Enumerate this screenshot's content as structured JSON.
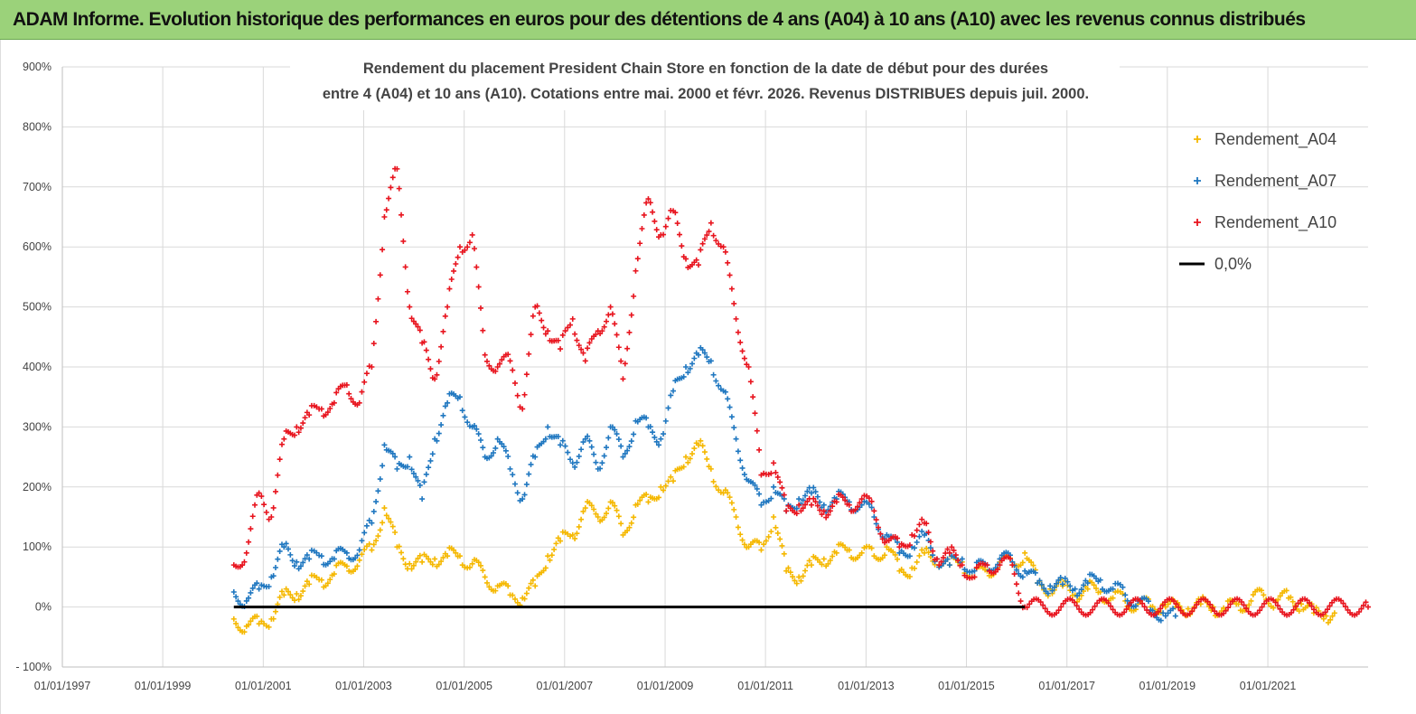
{
  "banner": {
    "title": "ADAM Informe. Evolution historique des performances en euros pour des détentions de 4 ans (A04) à 10 ans (A10) avec les revenus connus distribués",
    "background": "#9bd27a"
  },
  "chart_data": {
    "type": "scatter",
    "title_line1": "Rendement du placement President Chain Store  en fonction de la date de début pour des durées",
    "title_line2": "entre 4 (A04) et 10 ans (A10).  Cotations entre mai. 2000 et févr. 2026. Revenus DISTRIBUES depuis juil. 2000.",
    "xlabel": "",
    "ylabel": "",
    "x_axis": "date",
    "xlim": [
      "1997-01-01",
      "2022-12-31"
    ],
    "xticks": [
      "01/01/1997",
      "01/01/1999",
      "01/01/2001",
      "01/01/2003",
      "01/01/2005",
      "01/01/2007",
      "01/01/2009",
      "01/01/2011",
      "01/01/2013",
      "01/01/2015",
      "01/01/2017",
      "01/01/2019",
      "01/01/2021"
    ],
    "ylim": [
      -100,
      900
    ],
    "yticks": [
      -100,
      0,
      100,
      200,
      300,
      400,
      500,
      600,
      700,
      800,
      900
    ],
    "ytick_labels": [
      "- 100%",
      "0%",
      "100%",
      "200%",
      "300%",
      "400%",
      "500%",
      "600%",
      "700%",
      "800%",
      "900%"
    ],
    "grid": true,
    "legend_position": "top-right",
    "series": [
      {
        "name": "Rendement_A04",
        "color": "#f5b800",
        "marker": "+",
        "points": [
          [
            "2000-06-01",
            -20
          ],
          [
            "2000-09-01",
            -32
          ],
          [
            "2000-12-01",
            -28
          ],
          [
            "2001-03-01",
            -20
          ],
          [
            "2001-06-01",
            20
          ],
          [
            "2001-09-01",
            22
          ],
          [
            "2001-12-01",
            38
          ],
          [
            "2002-03-01",
            45
          ],
          [
            "2002-06-01",
            55
          ],
          [
            "2002-09-01",
            68
          ],
          [
            "2002-12-01",
            78
          ],
          [
            "2003-03-01",
            95
          ],
          [
            "2003-06-01",
            165
          ],
          [
            "2003-09-01",
            100
          ],
          [
            "2003-12-01",
            72
          ],
          [
            "2004-03-01",
            75
          ],
          [
            "2004-06-01",
            80
          ],
          [
            "2004-09-01",
            85
          ],
          [
            "2004-12-01",
            85
          ],
          [
            "2005-03-01",
            72
          ],
          [
            "2005-06-01",
            50
          ],
          [
            "2005-09-01",
            35
          ],
          [
            "2005-12-01",
            20
          ],
          [
            "2006-03-01",
            15
          ],
          [
            "2006-06-01",
            35
          ],
          [
            "2006-09-01",
            85
          ],
          [
            "2006-12-01",
            110
          ],
          [
            "2007-03-01",
            120
          ],
          [
            "2007-06-01",
            165
          ],
          [
            "2007-09-01",
            150
          ],
          [
            "2007-12-01",
            175
          ],
          [
            "2008-03-01",
            120
          ],
          [
            "2008-06-01",
            170
          ],
          [
            "2008-09-01",
            175
          ],
          [
            "2008-12-01",
            200
          ],
          [
            "2009-03-01",
            210
          ],
          [
            "2009-06-01",
            250
          ],
          [
            "2009-09-01",
            270
          ],
          [
            "2009-12-01",
            230
          ],
          [
            "2010-03-01",
            190
          ],
          [
            "2010-06-01",
            150
          ],
          [
            "2010-09-01",
            100
          ],
          [
            "2010-12-01",
            95
          ],
          [
            "2011-03-01",
            150
          ],
          [
            "2011-06-01",
            60
          ],
          [
            "2011-09-01",
            50
          ],
          [
            "2011-12-01",
            70
          ],
          [
            "2012-03-01",
            80
          ],
          [
            "2012-06-01",
            90
          ],
          [
            "2012-09-01",
            95
          ],
          [
            "2012-12-01",
            90
          ],
          [
            "2013-03-01",
            85
          ],
          [
            "2013-06-01",
            100
          ],
          [
            "2013-09-01",
            60
          ],
          [
            "2013-12-01",
            65
          ],
          [
            "2014-03-01",
            90
          ],
          [
            "2014-06-01",
            80
          ],
          [
            "2014-09-01",
            70
          ],
          [
            "2014-12-01",
            75
          ],
          [
            "2015-03-01",
            50
          ],
          [
            "2015-06-01",
            60
          ],
          [
            "2015-09-01",
            75
          ],
          [
            "2015-12-01",
            70
          ],
          [
            "2016-03-01",
            90
          ],
          [
            "2016-06-01",
            40
          ],
          [
            "2016-09-01",
            30
          ],
          [
            "2016-12-01",
            35
          ],
          [
            "2017-03-01",
            20
          ],
          [
            "2017-06-01",
            30
          ],
          [
            "2017-09-01",
            25
          ],
          [
            "2017-12-01",
            15
          ],
          [
            "2018-03-01",
            10
          ],
          [
            "2018-06-01",
            5
          ],
          [
            "2018-09-01",
            0
          ],
          [
            "2018-12-01",
            5
          ],
          [
            "2019-03-01",
            0
          ],
          [
            "2019-06-01",
            -3
          ],
          [
            "2019-09-01",
            5
          ],
          [
            "2019-12-01",
            0
          ],
          [
            "2020-03-01",
            -5
          ],
          [
            "2020-06-01",
            5
          ],
          [
            "2020-09-01",
            10
          ],
          [
            "2020-12-01",
            20
          ],
          [
            "2021-03-01",
            10
          ],
          [
            "2021-06-01",
            15
          ],
          [
            "2021-09-01",
            5
          ],
          [
            "2021-12-01",
            -10
          ],
          [
            "2022-03-01",
            -15
          ],
          [
            "2022-05-01",
            -10
          ]
        ]
      },
      {
        "name": "Rendement_A07",
        "color": "#1f77c0",
        "marker": "+",
        "points": [
          [
            "2000-06-01",
            25
          ],
          [
            "2000-09-01",
            10
          ],
          [
            "2000-12-01",
            30
          ],
          [
            "2001-03-01",
            50
          ],
          [
            "2001-06-01",
            100
          ],
          [
            "2001-09-01",
            75
          ],
          [
            "2001-12-01",
            80
          ],
          [
            "2002-03-01",
            85
          ],
          [
            "2002-06-01",
            80
          ],
          [
            "2002-09-01",
            90
          ],
          [
            "2002-12-01",
            95
          ],
          [
            "2003-03-01",
            140
          ],
          [
            "2003-06-01",
            270
          ],
          [
            "2003-09-01",
            230
          ],
          [
            "2003-12-01",
            250
          ],
          [
            "2004-03-01",
            180
          ],
          [
            "2004-06-01",
            280
          ],
          [
            "2004-09-01",
            340
          ],
          [
            "2004-12-01",
            350
          ],
          [
            "2005-03-01",
            300
          ],
          [
            "2005-06-01",
            250
          ],
          [
            "2005-09-01",
            280
          ],
          [
            "2005-12-01",
            230
          ],
          [
            "2006-03-01",
            180
          ],
          [
            "2006-06-01",
            250
          ],
          [
            "2006-09-01",
            300
          ],
          [
            "2006-12-01",
            270
          ],
          [
            "2007-03-01",
            240
          ],
          [
            "2007-06-01",
            280
          ],
          [
            "2007-09-01",
            230
          ],
          [
            "2007-12-01",
            300
          ],
          [
            "2008-03-01",
            250
          ],
          [
            "2008-06-01",
            310
          ],
          [
            "2008-09-01",
            300
          ],
          [
            "2008-12-01",
            280
          ],
          [
            "2009-03-01",
            360
          ],
          [
            "2009-06-01",
            400
          ],
          [
            "2009-09-01",
            420
          ],
          [
            "2009-12-01",
            410
          ],
          [
            "2010-03-01",
            360
          ],
          [
            "2010-06-01",
            280
          ],
          [
            "2010-09-01",
            210
          ],
          [
            "2010-12-01",
            170
          ],
          [
            "2011-03-01",
            200
          ],
          [
            "2011-06-01",
            160
          ],
          [
            "2011-09-01",
            180
          ],
          [
            "2011-12-01",
            190
          ],
          [
            "2012-03-01",
            170
          ],
          [
            "2012-06-01",
            180
          ],
          [
            "2012-09-01",
            175
          ],
          [
            "2012-12-01",
            170
          ],
          [
            "2013-03-01",
            150
          ],
          [
            "2013-06-01",
            120
          ],
          [
            "2013-09-01",
            90
          ],
          [
            "2013-12-01",
            100
          ],
          [
            "2014-03-01",
            120
          ],
          [
            "2014-06-01",
            80
          ],
          [
            "2014-09-01",
            70
          ],
          [
            "2014-12-01",
            80
          ],
          [
            "2015-03-01",
            60
          ],
          [
            "2015-06-01",
            70
          ],
          [
            "2015-09-01",
            80
          ],
          [
            "2015-12-01",
            75
          ],
          [
            "2016-03-01",
            60
          ],
          [
            "2016-06-01",
            40
          ],
          [
            "2016-09-01",
            35
          ],
          [
            "2016-12-01",
            38
          ],
          [
            "2017-03-01",
            30
          ],
          [
            "2017-06-01",
            40
          ],
          [
            "2017-09-01",
            45
          ],
          [
            "2017-12-01",
            30
          ],
          [
            "2018-03-01",
            20
          ],
          [
            "2018-06-01",
            10
          ],
          [
            "2018-09-01",
            -5
          ],
          [
            "2018-12-01",
            -10
          ],
          [
            "2019-03-01",
            -15
          ]
        ]
      },
      {
        "name": "Rendement_A10",
        "color": "#e8141e",
        "marker": "+",
        "points": [
          [
            "2000-06-01",
            70
          ],
          [
            "2000-09-01",
            90
          ],
          [
            "2000-12-01",
            190
          ],
          [
            "2001-03-01",
            150
          ],
          [
            "2001-06-01",
            280
          ],
          [
            "2001-09-01",
            300
          ],
          [
            "2001-12-01",
            320
          ],
          [
            "2002-03-01",
            330
          ],
          [
            "2002-06-01",
            340
          ],
          [
            "2002-09-01",
            370
          ],
          [
            "2002-12-01",
            340
          ],
          [
            "2003-03-01",
            400
          ],
          [
            "2003-06-01",
            650
          ],
          [
            "2003-09-01",
            730
          ],
          [
            "2003-12-01",
            500
          ],
          [
            "2004-03-01",
            440
          ],
          [
            "2004-06-01",
            380
          ],
          [
            "2004-09-01",
            500
          ],
          [
            "2004-12-01",
            600
          ],
          [
            "2005-03-01",
            620
          ],
          [
            "2005-06-01",
            420
          ],
          [
            "2005-09-01",
            400
          ],
          [
            "2005-12-01",
            410
          ],
          [
            "2006-03-01",
            330
          ],
          [
            "2006-06-01",
            500
          ],
          [
            "2006-09-01",
            460
          ],
          [
            "2006-12-01",
            430
          ],
          [
            "2007-03-01",
            480
          ],
          [
            "2007-06-01",
            410
          ],
          [
            "2007-09-01",
            460
          ],
          [
            "2007-12-01",
            500
          ],
          [
            "2008-03-01",
            380
          ],
          [
            "2008-06-01",
            560
          ],
          [
            "2008-09-01",
            680
          ],
          [
            "2008-12-01",
            620
          ],
          [
            "2009-03-01",
            660
          ],
          [
            "2009-06-01",
            580
          ],
          [
            "2009-09-01",
            570
          ],
          [
            "2009-12-01",
            640
          ],
          [
            "2010-03-01",
            600
          ],
          [
            "2010-06-01",
            480
          ],
          [
            "2010-09-01",
            400
          ],
          [
            "2010-12-01",
            220
          ],
          [
            "2011-03-01",
            240
          ],
          [
            "2011-06-01",
            160
          ],
          [
            "2011-09-01",
            170
          ],
          [
            "2011-12-01",
            170
          ],
          [
            "2012-03-01",
            160
          ],
          [
            "2012-06-01",
            175
          ],
          [
            "2012-09-01",
            170
          ],
          [
            "2012-12-01",
            180
          ],
          [
            "2013-03-01",
            160
          ],
          [
            "2013-06-01",
            110
          ],
          [
            "2013-09-01",
            100
          ],
          [
            "2013-12-01",
            120
          ],
          [
            "2014-03-01",
            140
          ],
          [
            "2014-06-01",
            80
          ],
          [
            "2014-09-01",
            90
          ],
          [
            "2014-12-01",
            70
          ],
          [
            "2015-03-01",
            50
          ],
          [
            "2015-06-01",
            70
          ],
          [
            "2015-09-01",
            70
          ],
          [
            "2015-12-01",
            70
          ],
          [
            "2016-03-01",
            0
          ],
          [
            "2022-12-31",
            0
          ]
        ]
      },
      {
        "name": "0,0%",
        "color": "#000000",
        "marker": "line",
        "points": [
          [
            "2000-06-01",
            0
          ],
          [
            "2016-03-01",
            0
          ]
        ]
      }
    ]
  }
}
